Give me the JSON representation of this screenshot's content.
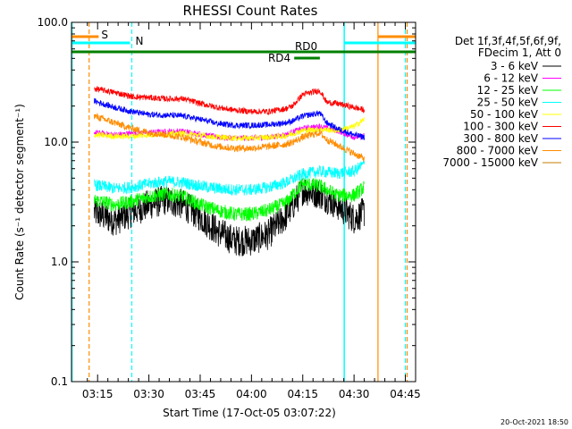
{
  "chart_data": {
    "type": "line",
    "title": "RHESSI Count Rates",
    "xlabel": "Start Time (17-Oct-05 03:07:22)",
    "ylabel": "Count Rate (s⁻¹ detector segment⁻¹)",
    "y_scale": "log",
    "ylim": [
      0.1,
      100.0
    ],
    "xlim": [
      "03:07:22",
      "04:48:00"
    ],
    "x_tick_labels": [
      "03:15",
      "03:30",
      "03:45",
      "04:00",
      "04:15",
      "04:30",
      "04:45"
    ],
    "y_tick_labels": [
      "0.1",
      "1.0",
      "10.0",
      "100.0"
    ],
    "grid": false,
    "legend_position": "right",
    "legend_header": [
      "Det 1f,3f,4f,5f,6f,9f,",
      "FDecim 1, Att 0"
    ],
    "timestamp": "20-Oct-2021 18:50",
    "series": [
      {
        "name": "3 - 6 keV",
        "color": "#000000",
        "x": [
          "03:14",
          "03:20",
          "03:25",
          "03:30",
          "03:35",
          "03:40",
          "03:45",
          "03:50",
          "03:55",
          "04:00",
          "04:05",
          "04:10",
          "04:15",
          "04:20",
          "04:25",
          "04:30",
          "04:33"
        ],
        "values": [
          2.6,
          2.2,
          2.6,
          3.0,
          3.3,
          3.0,
          2.4,
          1.8,
          1.5,
          1.5,
          1.7,
          2.4,
          4.0,
          3.7,
          3.0,
          2.3,
          2.6
        ]
      },
      {
        "name": "6 - 12 keV",
        "color": "#ff00ff",
        "x": [
          "03:14",
          "03:20",
          "03:25",
          "03:30",
          "03:35",
          "03:40",
          "03:45",
          "03:50",
          "03:55",
          "04:00",
          "04:05",
          "04:10",
          "04:15",
          "04:20",
          "04:25",
          "04:30",
          "04:33"
        ],
        "values": [
          12.0,
          11.5,
          11.8,
          12.0,
          12.2,
          12.3,
          11.6,
          11.0,
          10.8,
          10.8,
          11.0,
          11.5,
          13.0,
          13.5,
          12.5,
          11.0,
          11.2
        ]
      },
      {
        "name": "12 - 25 keV",
        "color": "#00ff00",
        "x": [
          "03:14",
          "03:20",
          "03:25",
          "03:30",
          "03:35",
          "03:40",
          "03:45",
          "03:50",
          "03:55",
          "04:00",
          "04:05",
          "04:10",
          "04:15",
          "04:20",
          "04:25",
          "04:30",
          "04:33"
        ],
        "values": [
          3.3,
          3.0,
          3.2,
          3.5,
          3.7,
          3.5,
          3.0,
          2.7,
          2.5,
          2.5,
          2.7,
          3.1,
          4.5,
          4.3,
          3.6,
          3.6,
          4.2
        ]
      },
      {
        "name": "25 - 50 keV",
        "color": "#00ffff",
        "x": [
          "03:14",
          "03:20",
          "03:25",
          "03:30",
          "03:35",
          "03:40",
          "03:45",
          "03:50",
          "03:55",
          "04:00",
          "04:05",
          "04:10",
          "04:15",
          "04:20",
          "04:25",
          "04:30",
          "04:33"
        ],
        "values": [
          4.4,
          4.1,
          4.2,
          4.5,
          4.7,
          4.6,
          4.3,
          4.1,
          4.0,
          4.0,
          4.2,
          4.6,
          5.4,
          5.7,
          5.5,
          5.7,
          6.6
        ]
      },
      {
        "name": "50 - 100 keV",
        "color": "#ffff00",
        "x": [
          "03:14",
          "03:20",
          "03:25",
          "03:30",
          "03:35",
          "03:40",
          "03:45",
          "03:50",
          "03:55",
          "04:00",
          "04:05",
          "04:10",
          "04:15",
          "04:20",
          "04:25",
          "04:30",
          "04:33"
        ],
        "values": [
          11.5,
          11.2,
          11.2,
          11.5,
          11.7,
          11.8,
          11.4,
          11.0,
          10.8,
          10.8,
          11.0,
          11.3,
          12.5,
          12.8,
          12.5,
          13.5,
          15.5
        ]
      },
      {
        "name": "100 - 300 keV",
        "color": "#ff0000",
        "x": [
          "03:14",
          "03:20",
          "03:25",
          "03:30",
          "03:35",
          "03:40",
          "03:45",
          "03:50",
          "03:55",
          "04:00",
          "04:05",
          "04:10",
          "04:12",
          "04:15",
          "04:20",
          "04:22",
          "04:25",
          "04:30",
          "04:33"
        ],
        "values": [
          28.0,
          26.0,
          24.0,
          23.5,
          23.0,
          23.0,
          21.0,
          19.5,
          18.5,
          18.0,
          18.0,
          19.0,
          20.0,
          25.0,
          27.0,
          21.5,
          21.0,
          19.5,
          18.5
        ]
      },
      {
        "name": "300 - 800 keV",
        "color": "#0000ff",
        "x": [
          "03:14",
          "03:20",
          "03:25",
          "03:30",
          "03:35",
          "03:40",
          "03:45",
          "03:50",
          "03:55",
          "04:00",
          "04:05",
          "04:10",
          "04:12",
          "04:15",
          "04:20",
          "04:22",
          "04:25",
          "04:30",
          "04:33"
        ],
        "values": [
          22.0,
          19.5,
          18.0,
          17.0,
          16.8,
          16.5,
          15.5,
          14.3,
          13.8,
          13.8,
          14.0,
          14.5,
          15.0,
          16.5,
          17.5,
          14.5,
          13.0,
          11.5,
          11.0
        ]
      },
      {
        "name": "800 - 7000 keV",
        "color": "#ff8c00",
        "x": [
          "03:14",
          "03:20",
          "03:25",
          "03:30",
          "03:35",
          "03:40",
          "03:45",
          "03:50",
          "03:55",
          "04:00",
          "04:05",
          "04:10",
          "04:12",
          "04:15",
          "04:20",
          "04:22",
          "04:25",
          "04:30",
          "04:33"
        ],
        "values": [
          16.5,
          14.5,
          13.0,
          12.0,
          11.5,
          11.0,
          10.0,
          9.2,
          8.9,
          8.9,
          9.2,
          9.6,
          10.0,
          11.0,
          12.0,
          10.5,
          9.5,
          8.0,
          7.3
        ]
      },
      {
        "name": "7000 - 15000 keV",
        "color": "#c87800",
        "x": [],
        "values": []
      }
    ],
    "overlays": {
      "attenuator_state": {
        "label": "S",
        "color": "#ff8c00",
        "x_start": "03:07:22",
        "x_end": "03:14:00",
        "x_start2": "04:37:00",
        "x_end2": "04:45:00"
      },
      "night": {
        "label": "N",
        "color": "#00ffff",
        "x_start": "03:07:22",
        "x_end": "03:25:00",
        "x_start2": "04:27:00",
        "x_end2": "04:45:00"
      },
      "rd0": {
        "label": "RD0",
        "color": "#008000",
        "x_start": "03:07:22",
        "x_end": "04:48:00"
      },
      "rd4": {
        "label": "RD4",
        "color": "#008000",
        "x_start": "04:12:30",
        "x_end": "04:20:00"
      },
      "vlines_solid_cyan": [
        "03:07:22",
        "04:27:00"
      ],
      "vlines_dashed_cyan": [
        "03:25:00",
        "04:45:00"
      ],
      "vlines_solid_orange": [
        "04:37:00"
      ],
      "vlines_dashed_orange": [
        "03:12:00",
        "04:45:00"
      ]
    }
  }
}
